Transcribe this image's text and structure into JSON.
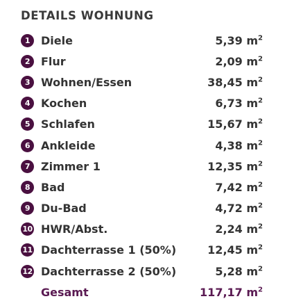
{
  "header": {
    "title": "DETAILS WOHNUNG"
  },
  "colors": {
    "badge": "#4a1040",
    "total_text": "#5a1a52",
    "text": "#333333"
  },
  "rooms": [
    {
      "number": "1",
      "label": "Diele",
      "value": "5,39 m",
      "unit_sup": "2"
    },
    {
      "number": "2",
      "label": "Flur",
      "value": "2,09 m",
      "unit_sup": "2"
    },
    {
      "number": "3",
      "label": "Wohnen/Essen",
      "value": "38,45 m",
      "unit_sup": "2"
    },
    {
      "number": "4",
      "label": "Kochen",
      "value": "6,73 m",
      "unit_sup": "2"
    },
    {
      "number": "5",
      "label": "Schlafen",
      "value": "15,67 m",
      "unit_sup": "2"
    },
    {
      "number": "6",
      "label": "Ankleide",
      "value": "4,38 m",
      "unit_sup": "2"
    },
    {
      "number": "7",
      "label": "Zimmer 1",
      "value": "12,35 m",
      "unit_sup": "2"
    },
    {
      "number": "8",
      "label": "Bad",
      "value": "7,42 m",
      "unit_sup": "2"
    },
    {
      "number": "9",
      "label": "Du-Bad",
      "value": "4,72 m",
      "unit_sup": "2"
    },
    {
      "number": "10",
      "label": "HWR/Abst.",
      "value": "2,24 m",
      "unit_sup": "2"
    },
    {
      "number": "11",
      "label": "Dachterrasse 1 (50%)",
      "value": "12,45 m",
      "unit_sup": "2"
    },
    {
      "number": "12",
      "label": "Dachterrasse 2 (50%)",
      "value": "5,28 m",
      "unit_sup": "2"
    }
  ],
  "total": {
    "label": "Gesamt",
    "value": "117,17 m",
    "unit_sup": "2"
  }
}
